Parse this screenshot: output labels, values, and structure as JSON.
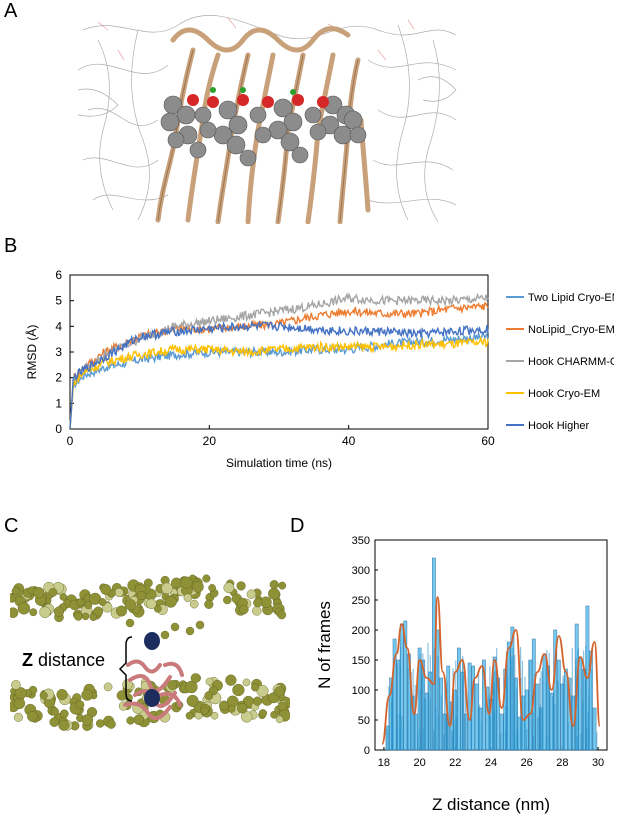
{
  "figure": {
    "panel_labels": [
      "A",
      "B",
      "C",
      "D"
    ]
  },
  "panelC": {
    "annotation_bold": "Z",
    "annotation_rest": " distance"
  },
  "chart_data": [
    {
      "type": "line",
      "panel": "B",
      "xlabel": "Simulation time (ns)",
      "ylabel": "RMSD (Å)",
      "xlim": [
        0,
        60
      ],
      "ylim": [
        0,
        6
      ],
      "xticks": [
        0,
        20,
        40,
        60
      ],
      "yticks": [
        0,
        1,
        2,
        3,
        4,
        5,
        6
      ],
      "legend_position": "right",
      "series": [
        {
          "name": "Two Lipid Cryo-EM",
          "color": "#5b9bd5",
          "x": [
            0,
            0.5,
            2,
            5,
            10,
            15,
            20,
            25,
            30,
            35,
            40,
            45,
            50,
            55,
            60
          ],
          "y": [
            0,
            1.7,
            2.1,
            2.4,
            2.7,
            2.9,
            3.0,
            3.0,
            3.0,
            3.1,
            3.1,
            3.3,
            3.4,
            3.5,
            3.6
          ]
        },
        {
          "name": "NoLipid_Cryo-EM",
          "color": "#ed7d31",
          "x": [
            0,
            0.5,
            2,
            5,
            10,
            15,
            20,
            25,
            30,
            35,
            40,
            45,
            50,
            55,
            60
          ],
          "y": [
            0,
            2.0,
            2.4,
            3.0,
            3.6,
            3.9,
            3.9,
            4.0,
            4.1,
            4.4,
            4.6,
            4.5,
            4.5,
            4.7,
            4.8
          ]
        },
        {
          "name": "Hook CHARMM-GUI",
          "color": "#a5a5a5",
          "x": [
            0,
            0.5,
            2,
            5,
            10,
            15,
            20,
            25,
            30,
            35,
            40,
            45,
            50,
            55,
            60
          ],
          "y": [
            0,
            1.9,
            2.3,
            2.9,
            3.5,
            4.0,
            4.2,
            4.4,
            4.6,
            4.8,
            5.1,
            5.0,
            5.0,
            5.0,
            5.1
          ]
        },
        {
          "name": "Hook Cryo-EM",
          "color": "#ffc000",
          "x": [
            0,
            0.5,
            2,
            5,
            10,
            15,
            20,
            25,
            30,
            35,
            40,
            45,
            50,
            55,
            60
          ],
          "y": [
            0,
            1.8,
            2.2,
            2.6,
            2.9,
            3.1,
            3.1,
            3.0,
            3.1,
            3.2,
            3.2,
            3.2,
            3.3,
            3.3,
            3.4
          ]
        },
        {
          "name": "Hook Higher",
          "color": "#4472c4",
          "x": [
            0,
            0.5,
            2,
            5,
            10,
            15,
            20,
            25,
            30,
            35,
            40,
            45,
            50,
            55,
            60
          ],
          "y": [
            0,
            2.0,
            2.3,
            2.8,
            3.6,
            3.8,
            3.9,
            4.0,
            4.0,
            3.9,
            3.8,
            3.8,
            3.7,
            3.8,
            3.9
          ]
        }
      ]
    },
    {
      "type": "bar",
      "panel": "D",
      "xlabel": "Z distance (nm)",
      "ylabel": "N of frames",
      "xlim": [
        17.5,
        30.5
      ],
      "ylim": [
        0,
        350
      ],
      "xticks": [
        18,
        20,
        22,
        24,
        26,
        28,
        30
      ],
      "yticks": [
        0,
        50,
        100,
        150,
        200,
        250,
        300,
        350
      ],
      "bar_color": "#5bc0ee",
      "bar_edge": "#2f6f9f",
      "fit_color": "#d4622a",
      "series": [
        {
          "name": "histogram",
          "x": [
            18.2,
            18.4,
            18.6,
            18.8,
            19.0,
            19.2,
            19.4,
            19.6,
            19.8,
            20.0,
            20.2,
            20.4,
            20.6,
            20.8,
            21.0,
            21.2,
            21.4,
            21.6,
            21.8,
            22.0,
            22.2,
            22.4,
            22.6,
            22.8,
            23.0,
            23.2,
            23.4,
            23.6,
            23.8,
            24.0,
            24.2,
            24.4,
            24.6,
            24.8,
            25.0,
            25.2,
            25.4,
            25.6,
            25.8,
            26.0,
            26.2,
            26.4,
            26.6,
            26.8,
            27.0,
            27.2,
            27.4,
            27.6,
            27.8,
            28.0,
            28.2,
            28.4,
            28.6,
            28.8,
            29.0,
            29.2,
            29.4,
            29.6,
            29.8
          ],
          "values": [
            40,
            120,
            185,
            150,
            210,
            215,
            160,
            90,
            60,
            170,
            150,
            95,
            130,
            320,
            200,
            120,
            60,
            140,
            80,
            100,
            170,
            130,
            60,
            145,
            140,
            110,
            70,
            150,
            105,
            85,
            155,
            120,
            60,
            135,
            180,
            205,
            120,
            55,
            90,
            100,
            150,
            185,
            110,
            70,
            160,
            140,
            95,
            200,
            150,
            110,
            135,
            120,
            90,
            210,
            155,
            135,
            240,
            165,
            70
          ]
        },
        {
          "name": "fit",
          "x": [
            17.9,
            18.3,
            18.7,
            19.0,
            19.3,
            19.7,
            20.0,
            20.4,
            20.8,
            21.0,
            21.3,
            21.7,
            22.0,
            22.4,
            22.8,
            23.1,
            23.5,
            23.9,
            24.2,
            24.6,
            25.0,
            25.4,
            25.8,
            26.2,
            26.6,
            27.0,
            27.4,
            27.8,
            28.2,
            28.6,
            29.0,
            29.4,
            29.8,
            30.1
          ],
          "values": [
            10,
            90,
            160,
            210,
            170,
            60,
            150,
            120,
            110,
            255,
            130,
            40,
            130,
            150,
            50,
            120,
            140,
            60,
            150,
            70,
            170,
            200,
            50,
            60,
            130,
            160,
            100,
            190,
            130,
            40,
            155,
            120,
            180,
            40
          ]
        }
      ]
    }
  ]
}
